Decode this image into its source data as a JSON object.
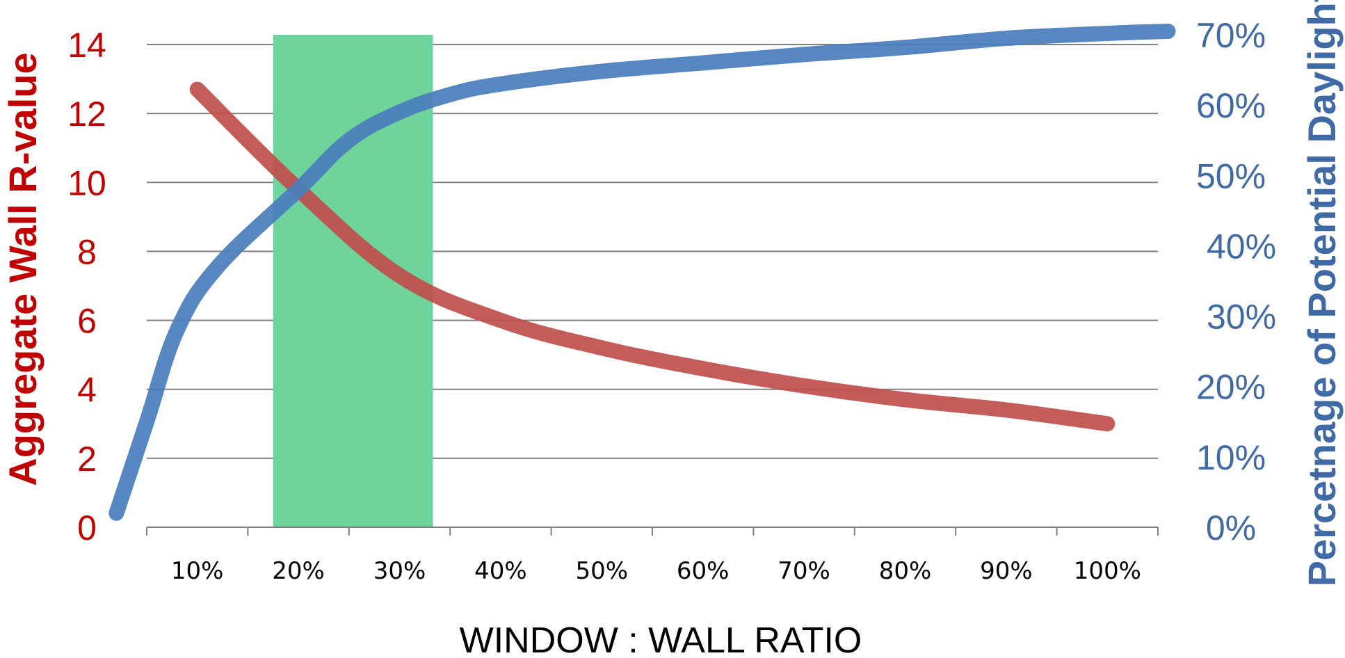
{
  "colors": {
    "left_axis": "#c00000",
    "right_axis": "#3f6aa5",
    "highlight": "#6fd49b",
    "grid": "#808080"
  },
  "chart_data": {
    "type": "line",
    "xlabel": "WINDOW : WALL RATIO",
    "ylabel_left": "Aggregate Wall R-value",
    "ylabel_right": "Percetnage of Potential Daylight",
    "x_categories": [
      "10%",
      "20%",
      "30%",
      "40%",
      "50%",
      "60%",
      "70%",
      "80%",
      "90%",
      "100%"
    ],
    "y_left_ticks": [
      "0",
      "2",
      "4",
      "6",
      "8",
      "10",
      "12",
      "14"
    ],
    "y_left_range": [
      0,
      14
    ],
    "y_right_ticks": [
      "0%",
      "10%",
      "20%",
      "30%",
      "40%",
      "50%",
      "60%",
      "70%"
    ],
    "y_right_range": [
      0,
      70
    ],
    "grid": true,
    "highlight_band": {
      "x_from": 0.175,
      "x_to": 0.333
    },
    "series": [
      {
        "axis": "left",
        "color": "#c0504d",
        "points": [
          [
            0.1,
            12.7
          ],
          [
            0.2,
            9.8
          ],
          [
            0.3,
            7.3
          ],
          [
            0.4,
            6.0
          ],
          [
            0.5,
            5.2
          ],
          [
            0.6,
            4.6
          ],
          [
            0.7,
            4.1
          ],
          [
            0.8,
            3.7
          ],
          [
            0.9,
            3.4
          ],
          [
            1.0,
            3.0
          ]
        ]
      },
      {
        "axis": "right",
        "color": "#4a7ebb",
        "points": [
          [
            0.02,
            2
          ],
          [
            0.05,
            15
          ],
          [
            0.08,
            28
          ],
          [
            0.12,
            37
          ],
          [
            0.2,
            48
          ],
          [
            0.25,
            55
          ],
          [
            0.3,
            59
          ],
          [
            0.35,
            61.5
          ],
          [
            0.4,
            63
          ],
          [
            0.5,
            64.8
          ],
          [
            0.6,
            66
          ],
          [
            0.7,
            67.2
          ],
          [
            0.8,
            68.2
          ],
          [
            0.9,
            69.5
          ],
          [
            1.0,
            70.2
          ],
          [
            1.06,
            70.5
          ]
        ]
      }
    ]
  }
}
